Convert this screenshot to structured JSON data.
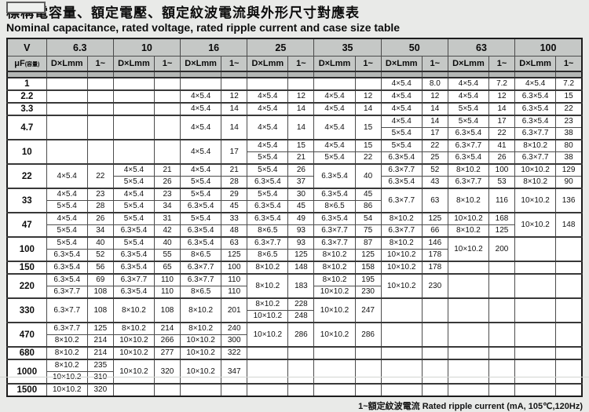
{
  "title_zh": "標稱電容量、額定電壓、額定紋波電流與外形尺寸對應表",
  "title_en": "Nominal capacitance, rated voltage, rated ripple current and case size table",
  "footnote": "1~額定紋波電流 Rated ripple current (mA, 105℃,120Hz)",
  "header": {
    "v_label": "V",
    "uf_label": "μF",
    "uf_sub": "(容量)",
    "dxl_label": "D×Lmm",
    "ripple_label": "1~",
    "voltages": [
      "6.3",
      "10",
      "16",
      "25",
      "35",
      "50",
      "63",
      "100"
    ]
  },
  "rows": [
    {
      "cap": "1",
      "sub": 1,
      "cols": [
        null,
        null,
        null,
        null,
        null,
        [
          "4×5.4",
          "8.0"
        ],
        [
          "4×5.4",
          "7.2"
        ],
        [
          "4×5.4",
          "7.2"
        ]
      ]
    },
    {
      "cap": "2.2",
      "sub": 1,
      "cols": [
        null,
        null,
        [
          "4×5.4",
          "12"
        ],
        [
          "4×5.4",
          "12"
        ],
        [
          "4×5.4",
          "12"
        ],
        [
          "4×5.4",
          "12"
        ],
        [
          "4×5.4",
          "12"
        ],
        [
          "6.3×5.4",
          "15"
        ]
      ]
    },
    {
      "cap": "3.3",
      "sub": 1,
      "cols": [
        null,
        null,
        [
          "4×5.4",
          "14"
        ],
        [
          "4×5.4",
          "14"
        ],
        [
          "4×5.4",
          "14"
        ],
        [
          "4×5.4",
          "14"
        ],
        [
          "5×5.4",
          "14"
        ],
        [
          "6.3×5.4",
          "22"
        ]
      ]
    },
    {
      "cap": "4.7",
      "sub": 2,
      "cols": [
        null,
        null,
        [
          "4×5.4",
          "14"
        ],
        [
          "4×5.4",
          "14"
        ],
        [
          "4×5.4",
          "15"
        ],
        [
          [
            "4×5.4",
            "14"
          ],
          [
            "5×5.4",
            "17"
          ]
        ],
        [
          [
            "5×5.4",
            "17"
          ],
          [
            "6.3×5.4",
            "22"
          ]
        ],
        [
          [
            "6.3×5.4",
            "23"
          ],
          [
            "6.3×7.7",
            "38"
          ]
        ]
      ]
    },
    {
      "cap": "10",
      "sub": 2,
      "cols": [
        null,
        null,
        [
          "4×5.4",
          "17"
        ],
        [
          [
            "4×5.4",
            "15"
          ],
          [
            "5×5.4",
            "21"
          ]
        ],
        [
          [
            "4×5.4",
            "15"
          ],
          [
            "5×5.4",
            "22"
          ]
        ],
        [
          [
            "5×5.4",
            "22"
          ],
          [
            "6.3×5.4",
            "25"
          ]
        ],
        [
          [
            "6.3×7.7",
            "41"
          ],
          [
            "6.3×5.4",
            "26"
          ]
        ],
        [
          [
            "8×10.2",
            "80"
          ],
          [
            "6.3×7.7",
            "38"
          ]
        ]
      ]
    },
    {
      "cap": "22",
      "sub": 2,
      "cols": [
        [
          "4×5.4",
          "22"
        ],
        [
          [
            "4×5.4",
            "21"
          ],
          [
            "5×5.4",
            "26"
          ]
        ],
        [
          [
            "4×5.4",
            "21"
          ],
          [
            "5×5.4",
            "28"
          ]
        ],
        [
          [
            "5×5.4",
            "26"
          ],
          [
            "6.3×5.4",
            "37"
          ]
        ],
        [
          "6.3×5.4",
          "40"
        ],
        [
          [
            "6.3×7.7",
            "52"
          ],
          [
            "6.3×5.4",
            "43"
          ]
        ],
        [
          [
            "8×10.2",
            "100"
          ],
          [
            "6.3×7.7",
            "53"
          ]
        ],
        [
          [
            "10×10.2",
            "129"
          ],
          [
            "8×10.2",
            "90"
          ]
        ]
      ]
    },
    {
      "cap": "33",
      "sub": 2,
      "cols": [
        [
          [
            "4×5.4",
            "23"
          ],
          [
            "5×5.4",
            "28"
          ]
        ],
        [
          [
            "4×5.4",
            "23"
          ],
          [
            "5×5.4",
            "34"
          ]
        ],
        [
          [
            "5×5.4",
            "29"
          ],
          [
            "6.3×5.4",
            "45"
          ]
        ],
        [
          [
            "5×5.4",
            "30"
          ],
          [
            "6.3×5.4",
            "45"
          ]
        ],
        [
          [
            "6.3×5.4",
            "45"
          ],
          [
            "8×6.5",
            "86"
          ]
        ],
        [
          "6.3×7.7",
          "63"
        ],
        [
          "8×10.2",
          "116"
        ],
        [
          "10×10.2",
          "136"
        ]
      ]
    },
    {
      "cap": "47",
      "sub": 2,
      "cols": [
        [
          [
            "4×5.4",
            "26"
          ],
          [
            "5×5.4",
            "34"
          ]
        ],
        [
          [
            "5×5.4",
            "31"
          ],
          [
            "6.3×5.4",
            "42"
          ]
        ],
        [
          [
            "5×5.4",
            "33"
          ],
          [
            "6.3×5.4",
            "48"
          ]
        ],
        [
          [
            "6.3×5.4",
            "49"
          ],
          [
            "8×6.5",
            "93"
          ]
        ],
        [
          [
            "6.3×5.4",
            "54"
          ],
          [
            "6.3×7.7",
            "75"
          ]
        ],
        [
          [
            "8×10.2",
            "125"
          ],
          [
            "6.3×7.7",
            "66"
          ]
        ],
        [
          [
            "10×10.2",
            "168"
          ],
          [
            "8×10.2",
            "125"
          ]
        ],
        [
          "10×10.2",
          "148"
        ]
      ]
    },
    {
      "cap": "100",
      "sub": 2,
      "cols": [
        [
          [
            "5×5.4",
            "40"
          ],
          [
            "6.3×5.4",
            "52"
          ]
        ],
        [
          [
            "5×5.4",
            "40"
          ],
          [
            "6.3×5.4",
            "55"
          ]
        ],
        [
          [
            "6.3×5.4",
            "63"
          ],
          [
            "8×6.5",
            "125"
          ]
        ],
        [
          [
            "6.3×7.7",
            "93"
          ],
          [
            "8×6.5",
            "125"
          ]
        ],
        [
          [
            "6.3×7.7",
            "87"
          ],
          [
            "8×10.2",
            "125"
          ]
        ],
        [
          [
            "8×10.2",
            "146"
          ],
          [
            "10×10.2",
            "178"
          ]
        ],
        [
          "10×10.2",
          "200"
        ],
        null
      ]
    },
    {
      "cap": "150",
      "sub": 1,
      "cols": [
        [
          "6.3×5.4",
          "56"
        ],
        [
          "6.3×5.4",
          "65"
        ],
        [
          "6.3×7.7",
          "100"
        ],
        [
          "8×10.2",
          "148"
        ],
        [
          "8×10.2",
          "158"
        ],
        [
          "10×10.2",
          "178"
        ],
        null,
        null
      ]
    },
    {
      "cap": "220",
      "sub": 2,
      "cols": [
        [
          [
            "6.3×5.4",
            "69"
          ],
          [
            "6.3×7.7",
            "108"
          ]
        ],
        [
          [
            "6.3×7.7",
            "110"
          ],
          [
            "6.3×5.4",
            "110"
          ]
        ],
        [
          [
            "6.3×7.7",
            "110"
          ],
          [
            "8×6.5",
            "110"
          ]
        ],
        [
          "8×10.2",
          "183"
        ],
        [
          [
            "8×10.2",
            "195"
          ],
          [
            "10×10.2",
            "230"
          ]
        ],
        [
          "10×10.2",
          "230"
        ],
        null,
        null
      ]
    },
    {
      "cap": "330",
      "sub": 2,
      "cols": [
        [
          "6.3×7.7",
          "108"
        ],
        [
          "8×10.2",
          "108"
        ],
        [
          "8×10.2",
          "201"
        ],
        [
          [
            "8×10.2",
            "228"
          ],
          [
            "10×10.2",
            "248"
          ]
        ],
        [
          "10×10.2",
          "247"
        ],
        null,
        null,
        null
      ]
    },
    {
      "cap": "470",
      "sub": 2,
      "cols": [
        [
          [
            "6.3×7.7",
            "125"
          ],
          [
            "8×10.2",
            "214"
          ]
        ],
        [
          [
            "8×10.2",
            "214"
          ],
          [
            "10×10.2",
            "266"
          ]
        ],
        [
          [
            "8×10.2",
            "240"
          ],
          [
            "10×10.2",
            "300"
          ]
        ],
        [
          "10×10.2",
          "286"
        ],
        [
          "10×10.2",
          "286"
        ],
        null,
        null,
        null
      ]
    },
    {
      "cap": "680",
      "sub": 1,
      "cols": [
        [
          "8×10.2",
          "214"
        ],
        [
          "10×10.2",
          "277"
        ],
        [
          "10×10.2",
          "322"
        ],
        null,
        null,
        null,
        null,
        null
      ]
    },
    {
      "cap": "1000",
      "sub": 2,
      "cols": [
        [
          [
            "8×10.2",
            "235"
          ],
          [
            "10×10.2",
            "310"
          ]
        ],
        [
          "10×10.2",
          "320"
        ],
        [
          "10×10.2",
          "347"
        ],
        null,
        null,
        null,
        null,
        null
      ]
    },
    {
      "cap": "1500",
      "sub": 1,
      "cols": [
        [
          "10×10.2",
          "320"
        ],
        null,
        null,
        null,
        null,
        null,
        null,
        null
      ]
    }
  ]
}
